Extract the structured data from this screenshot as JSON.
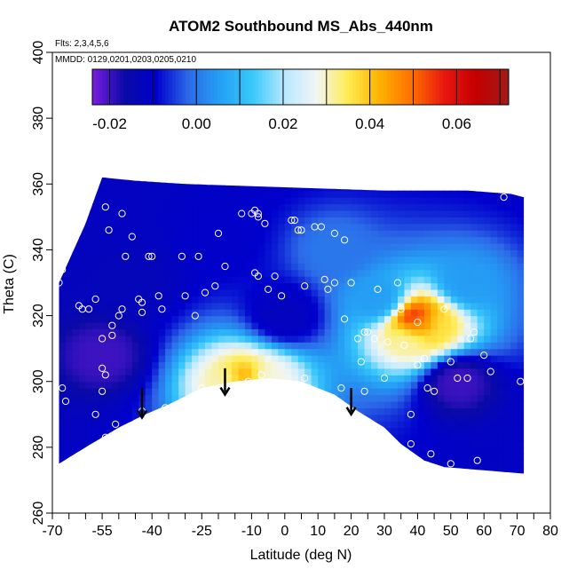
{
  "chart_data": {
    "type": "heatmap",
    "title": "ATOM2 Southbound MS_Abs_440nm",
    "flights_note": "Flts: 2,3,4,5,6",
    "dates_note": "MMDD: 0129,0201,0203,0205,0210",
    "xlabel": "Latitude (deg N)",
    "ylabel": "Theta (C)",
    "xlim": [
      -70,
      80
    ],
    "ylim": [
      260,
      400
    ],
    "x_ticks": [
      -70,
      -65,
      -60,
      -55,
      -50,
      -45,
      -40,
      -35,
      -30,
      -25,
      -20,
      -15,
      -10,
      -5,
      0,
      5,
      10,
      15,
      20,
      25,
      30,
      35,
      40,
      45,
      50,
      55,
      60,
      65,
      70,
      75,
      80
    ],
    "x_tick_labels": [
      "-70",
      "",
      "",
      "-55",
      "",
      "",
      "-40",
      "",
      "",
      "-25",
      "",
      "",
      "-10",
      "",
      "0",
      "",
      "10",
      "",
      "20",
      "",
      "30",
      "",
      "40",
      "",
      "50",
      "",
      "60",
      "",
      "70",
      "",
      "80"
    ],
    "y_ticks": [
      260,
      280,
      300,
      320,
      340,
      360,
      380,
      400
    ],
    "y_tick_labels": [
      "260",
      "280",
      "300",
      "320",
      "340",
      "360",
      "380",
      "400"
    ],
    "colorbar": {
      "min": -0.024,
      "max": 0.072,
      "tick_values": [
        -0.02,
        0.0,
        0.02,
        0.04,
        0.06
      ],
      "tick_labels": [
        "-0.02",
        "0.00",
        "0.02",
        "0.04",
        "0.06"
      ],
      "boundaries": [
        -0.024,
        -0.02,
        -0.01,
        0.0,
        0.01,
        0.02,
        0.03,
        0.04,
        0.05,
        0.06,
        0.07,
        0.072
      ],
      "colors": [
        "#7a1ee0",
        "#0a0aa6",
        "#0000cd",
        "#2c6ae8",
        "#25a0f5",
        "#38c8fa",
        "#b8e8ff",
        "#f2f6f4",
        "#ffeb50",
        "#ffb000",
        "#ff6d00",
        "#e8170f",
        "#c40000",
        "#9e1b1b"
      ]
    },
    "data_region": {
      "x_range": [
        -68,
        72
      ],
      "top_theta": [
        [
          -68,
          330
        ],
        [
          -60,
          348
        ],
        [
          -55,
          362
        ],
        [
          -45,
          361
        ],
        [
          -30,
          360
        ],
        [
          0,
          359
        ],
        [
          30,
          358
        ],
        [
          55,
          358
        ],
        [
          68,
          357
        ],
        [
          72,
          356
        ]
      ],
      "bottom_theta": [
        [
          -68,
          275
        ],
        [
          -60,
          280
        ],
        [
          -50,
          286
        ],
        [
          -42,
          290
        ],
        [
          -35,
          293
        ],
        [
          -25,
          298
        ],
        [
          -15,
          300
        ],
        [
          -5,
          301
        ],
        [
          5,
          300
        ],
        [
          15,
          296
        ],
        [
          22,
          291
        ],
        [
          30,
          286
        ],
        [
          35,
          281
        ],
        [
          42,
          276
        ],
        [
          48,
          274
        ],
        [
          60,
          273
        ],
        [
          72,
          272
        ]
      ]
    },
    "field_blobs": [
      {
        "lat": 40,
        "theta": 318,
        "value": 0.06
      },
      {
        "lat": 44,
        "theta": 317,
        "value": 0.035
      },
      {
        "lat": 38,
        "theta": 314,
        "value": 0.03
      },
      {
        "lat": -12,
        "theta": 300,
        "value": 0.045
      },
      {
        "lat": -17,
        "theta": 299,
        "value": 0.03
      },
      {
        "lat": -6,
        "theta": 300,
        "value": 0.028
      },
      {
        "lat": 52,
        "theta": 300,
        "value": -0.02
      },
      {
        "lat": -55,
        "theta": 308,
        "value": -0.02
      },
      {
        "lat": 28,
        "theta": 325,
        "value": 0.005
      },
      {
        "lat": 15,
        "theta": 340,
        "value": 0.0
      },
      {
        "lat": 55,
        "theta": 330,
        "value": 0.005
      },
      {
        "lat": -20,
        "theta": 345,
        "value": -0.01
      },
      {
        "lat": -45,
        "theta": 330,
        "value": -0.013
      },
      {
        "lat": 0,
        "theta": 320,
        "value": -0.012
      }
    ],
    "sample_points": [
      [
        -68,
        330
      ],
      [
        -67,
        334
      ],
      [
        -67,
        298
      ],
      [
        -66,
        294
      ],
      [
        -62,
        323
      ],
      [
        -61,
        322
      ],
      [
        -59,
        322
      ],
      [
        -57,
        325
      ],
      [
        -55,
        313
      ],
      [
        -55,
        304
      ],
      [
        -54,
        302
      ],
      [
        -55,
        297
      ],
      [
        -57,
        290
      ],
      [
        -55,
        281
      ],
      [
        -54,
        283
      ],
      [
        -51,
        287
      ],
      [
        -54,
        353
      ],
      [
        -53,
        346
      ],
      [
        -49,
        351
      ],
      [
        -48,
        338
      ],
      [
        -46,
        344
      ],
      [
        -44,
        325
      ],
      [
        -43,
        324
      ],
      [
        -43,
        321
      ],
      [
        -52,
        314
      ],
      [
        -52,
        317
      ],
      [
        -50,
        320
      ],
      [
        -49,
        322
      ],
      [
        -41,
        338
      ],
      [
        -40,
        338
      ],
      [
        -38,
        326
      ],
      [
        -37,
        322
      ],
      [
        -36,
        292
      ],
      [
        -43,
        291
      ],
      [
        -31,
        338
      ],
      [
        -30,
        326
      ],
      [
        -27,
        320
      ],
      [
        -26,
        338
      ],
      [
        -24,
        327
      ],
      [
        -21,
        329
      ],
      [
        -25,
        298
      ],
      [
        -20,
        345
      ],
      [
        -18,
        335
      ],
      [
        -13,
        351
      ],
      [
        -10,
        351
      ],
      [
        -9,
        352
      ],
      [
        -8,
        351
      ],
      [
        -8,
        350
      ],
      [
        -6,
        348
      ],
      [
        -9,
        333
      ],
      [
        -8,
        332
      ],
      [
        -5,
        328
      ],
      [
        -3,
        332
      ],
      [
        -11,
        300
      ],
      [
        -7,
        302
      ],
      [
        -1,
        326
      ],
      [
        2,
        349
      ],
      [
        3,
        349
      ],
      [
        4,
        346
      ],
      [
        5,
        346
      ],
      [
        6,
        329
      ],
      [
        6,
        301
      ],
      [
        9,
        347
      ],
      [
        11,
        347
      ],
      [
        12,
        331
      ],
      [
        13,
        328
      ],
      [
        15,
        345
      ],
      [
        15,
        330
      ],
      [
        17,
        298
      ],
      [
        18,
        319
      ],
      [
        18,
        343
      ],
      [
        20,
        330
      ],
      [
        22,
        313
      ],
      [
        23,
        306
      ],
      [
        24,
        315
      ],
      [
        25,
        315
      ],
      [
        24,
        297
      ],
      [
        27,
        313
      ],
      [
        28,
        328
      ],
      [
        30,
        301
      ],
      [
        31,
        312
      ],
      [
        35,
        322
      ],
      [
        34,
        330
      ],
      [
        36,
        311
      ],
      [
        38,
        290
      ],
      [
        38,
        281
      ],
      [
        40,
        318
      ],
      [
        40,
        305
      ],
      [
        42,
        307
      ],
      [
        43,
        298
      ],
      [
        44,
        278
      ],
      [
        45,
        297
      ],
      [
        48,
        322
      ],
      [
        50,
        306
      ],
      [
        50,
        275
      ],
      [
        52,
        301
      ],
      [
        55,
        301
      ],
      [
        56,
        313
      ],
      [
        57,
        315
      ],
      [
        58,
        276
      ],
      [
        60,
        308
      ],
      [
        62,
        303
      ],
      [
        66,
        356
      ],
      [
        71,
        300
      ]
    ],
    "arrows": [
      {
        "lat": -43,
        "theta_from": 298,
        "theta_to": 289
      },
      {
        "lat": -18,
        "theta_from": 304,
        "theta_to": 296
      },
      {
        "lat": 20,
        "theta_from": 298,
        "theta_to": 290
      }
    ]
  }
}
